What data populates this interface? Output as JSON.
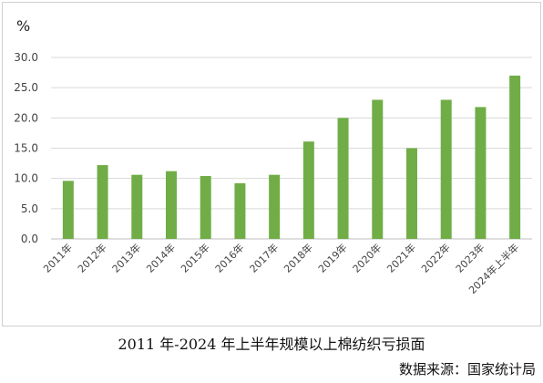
{
  "caption": "2011 年-2024 年上半年规模以上棉纺织亏损面",
  "source": "数据来源：国家统计局",
  "chart_data": {
    "type": "bar",
    "unit_label": "%",
    "categories": [
      "2011年",
      "2012年",
      "2013年",
      "2014年",
      "2015年",
      "2016年",
      "2017年",
      "2018年",
      "2019年",
      "2020年",
      "2021年",
      "2022年",
      "2023年",
      "2024年上半年"
    ],
    "values": [
      9.6,
      12.2,
      10.6,
      11.2,
      10.4,
      9.2,
      10.6,
      16.1,
      20.0,
      23.0,
      15.0,
      23.0,
      21.8,
      27.0
    ],
    "ylim": [
      0,
      30
    ],
    "yticks": [
      "0.0",
      "5.0",
      "10.0",
      "15.0",
      "20.0",
      "25.0",
      "30.0"
    ],
    "grid": true,
    "bar_color": "#70ad47",
    "grid_color": "#d9d9d9"
  }
}
